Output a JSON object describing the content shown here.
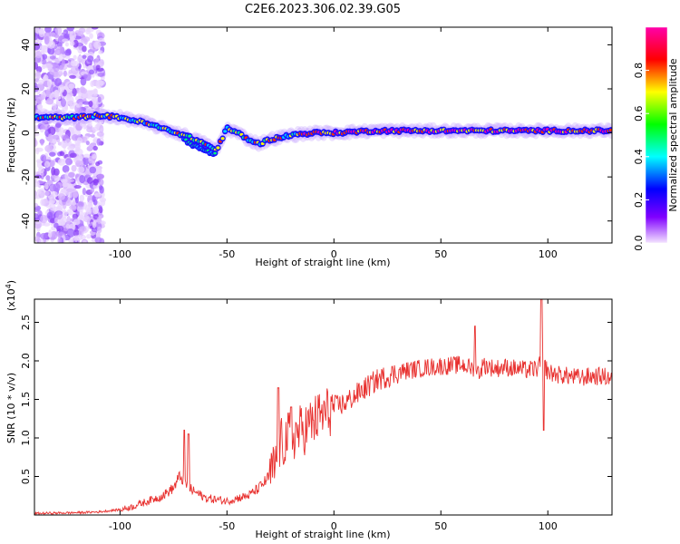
{
  "figure": {
    "title": "C2E6.2023.306.02.39.G05"
  },
  "chart_data": [
    {
      "type": "heatmap",
      "title": "",
      "xlabel": "Height of straight line (km)",
      "ylabel": "Frequency (Hz)",
      "xlim": [
        -140,
        130
      ],
      "ylim": [
        -50,
        48
      ],
      "x_ticks": [
        -100,
        -50,
        0,
        50,
        100
      ],
      "y_ticks": [
        -40,
        -20,
        0,
        20,
        40
      ],
      "colorbar": {
        "label": "Normalized spectral amplitude",
        "range": [
          0.0,
          1.0
        ],
        "ticks": [
          "0.0",
          "0.2",
          "0.4",
          "0.6",
          "0.8"
        ],
        "tick_values": [
          0.0,
          0.2,
          0.4,
          0.6,
          0.8
        ],
        "colors": [
          "#f4e4ff",
          "#8000ff",
          "#0000ff",
          "#00ffff",
          "#00ff00",
          "#ffff00",
          "#ff0000",
          "#ff00aa"
        ]
      },
      "frequency_track": {
        "x": [
          -140,
          -120,
          -110,
          -100,
          -90,
          -80,
          -70,
          -60,
          -55,
          -50,
          -45,
          -40,
          -35,
          -30,
          -20,
          -10,
          0,
          20,
          40,
          60,
          80,
          100,
          120,
          130
        ],
        "y": [
          7,
          7,
          8,
          7,
          5,
          2,
          -1,
          -5,
          -8,
          2,
          0,
          -3,
          -5,
          -3,
          -1,
          0,
          0,
          1,
          1,
          1,
          1,
          1,
          1,
          1
        ]
      },
      "branch_track": {
        "x": [
          -70,
          -65,
          -60,
          -55
        ],
        "y": [
          -3,
          -6,
          -8,
          -10
        ]
      },
      "noise_region": {
        "x_range": [
          -140,
          -108
        ],
        "y_range": [
          -50,
          48
        ]
      }
    },
    {
      "type": "line",
      "title": "",
      "xlabel": "Height of straight line (km)",
      "ylabel": "SNR (10 * v/v)",
      "y_scale_note": "(x10^4)",
      "xlim": [
        -140,
        130
      ],
      "ylim": [
        0,
        2.8
      ],
      "x_ticks": [
        -100,
        -50,
        0,
        50,
        100
      ],
      "y_ticks": [
        0.5,
        1.0,
        1.5,
        2.0,
        2.5
      ],
      "y_tick_labels": [
        "0.5",
        "1.0",
        "1.5",
        "2.0",
        "2.5"
      ],
      "series": [
        {
          "color": "#e8312f",
          "x": [
            -140,
            -120,
            -110,
            -100,
            -95,
            -90,
            -85,
            -80,
            -75,
            -72,
            -70,
            -68,
            -65,
            -60,
            -55,
            -50,
            -45,
            -40,
            -35,
            -30,
            -28,
            -25,
            -22,
            -20,
            -18,
            -15,
            -12,
            -10,
            -8,
            -5,
            -2,
            0,
            5,
            10,
            15,
            20,
            25,
            30,
            35,
            40,
            45,
            50,
            55,
            60,
            65,
            68,
            70,
            75,
            80,
            85,
            90,
            95,
            98,
            100,
            105,
            110,
            115,
            120,
            125,
            130
          ],
          "y": [
            0.02,
            0.03,
            0.04,
            0.07,
            0.1,
            0.15,
            0.2,
            0.25,
            0.35,
            0.5,
            0.45,
            0.35,
            0.3,
            0.22,
            0.2,
            0.18,
            0.22,
            0.25,
            0.35,
            0.5,
            0.6,
            0.9,
            1.0,
            1.0,
            1.05,
            1.1,
            1.15,
            1.2,
            1.25,
            1.3,
            1.35,
            1.4,
            1.45,
            1.55,
            1.65,
            1.75,
            1.8,
            1.85,
            1.88,
            1.9,
            1.92,
            1.93,
            1.94,
            1.95,
            1.9,
            1.85,
            1.95,
            1.9,
            1.92,
            1.9,
            1.88,
            1.9,
            2.0,
            1.85,
            1.82,
            1.8,
            1.78,
            1.8,
            1.8,
            1.78
          ]
        }
      ],
      "spikes": [
        {
          "x": -70,
          "y": 1.1
        },
        {
          "x": -68,
          "y": 1.05
        },
        {
          "x": -26,
          "y": 1.65
        },
        {
          "x": -20,
          "y": 1.4
        },
        {
          "x": 66,
          "y": 2.45
        },
        {
          "x": 97,
          "y": 2.8
        },
        {
          "x": 98,
          "y": 1.1
        }
      ]
    }
  ]
}
